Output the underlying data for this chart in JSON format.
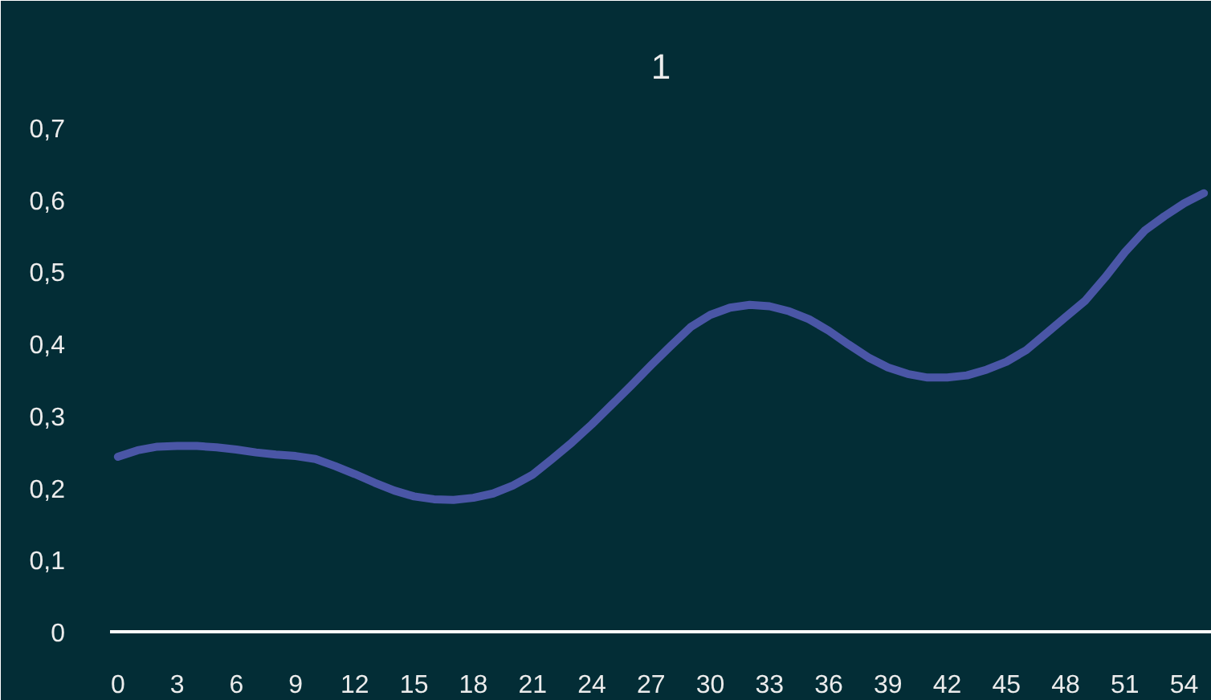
{
  "chart_data": {
    "type": "line",
    "title": "1",
    "x": [
      0,
      1,
      2,
      3,
      4,
      5,
      6,
      7,
      8,
      9,
      10,
      11,
      12,
      13,
      14,
      15,
      16,
      17,
      18,
      19,
      20,
      21,
      22,
      23,
      24,
      25,
      26,
      27,
      28,
      29,
      30,
      31,
      32,
      33,
      34,
      35,
      36,
      37,
      38,
      39,
      40,
      41,
      42,
      43,
      44,
      45,
      46,
      47,
      48,
      49,
      50,
      51,
      52,
      53,
      54,
      55
    ],
    "values": [
      0.243,
      0.252,
      0.257,
      0.258,
      0.258,
      0.256,
      0.253,
      0.249,
      0.246,
      0.244,
      0.24,
      0.23,
      0.219,
      0.207,
      0.196,
      0.188,
      0.184,
      0.183,
      0.186,
      0.192,
      0.203,
      0.218,
      0.24,
      0.263,
      0.288,
      0.315,
      0.342,
      0.37,
      0.397,
      0.423,
      0.44,
      0.45,
      0.454,
      0.452,
      0.445,
      0.434,
      0.418,
      0.399,
      0.381,
      0.367,
      0.358,
      0.353,
      0.353,
      0.356,
      0.364,
      0.375,
      0.391,
      0.414,
      0.437,
      0.46,
      0.492,
      0.527,
      0.557,
      0.577,
      0.595,
      0.609
    ],
    "color": "#4a56a6",
    "xlim": [
      -0.4,
      55.4
    ],
    "ylim": [
      0,
      0.7
    ],
    "xticks": [
      0,
      3,
      6,
      9,
      12,
      15,
      18,
      21,
      24,
      27,
      30,
      33,
      36,
      39,
      42,
      45,
      48,
      51,
      54
    ],
    "yticks": [
      0,
      {
        "value": 0.1,
        "label": "0,1"
      },
      {
        "value": 0.2,
        "label": "0,2"
      },
      {
        "value": 0.3,
        "label": "0,3"
      },
      {
        "value": 0.4,
        "label": "0,4"
      },
      {
        "value": 0.5,
        "label": "0,5"
      },
      {
        "value": 0.6,
        "label": "0,6"
      },
      {
        "value": 0.7,
        "label": "0,7"
      }
    ]
  }
}
